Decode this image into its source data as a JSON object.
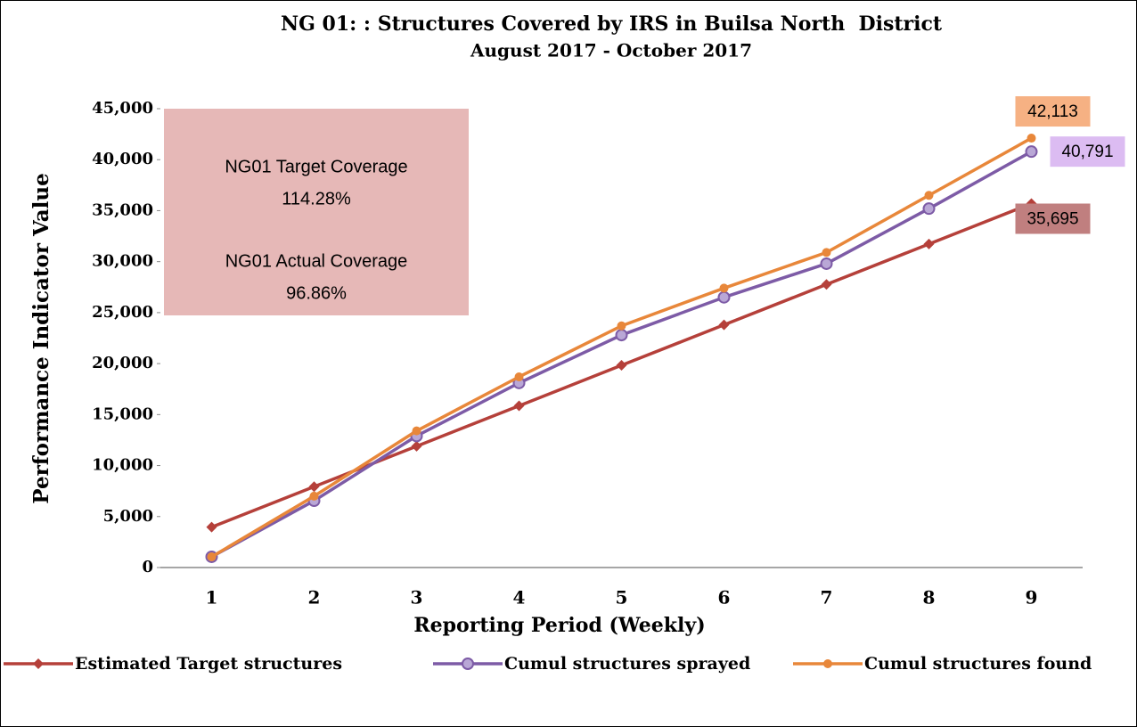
{
  "chart_data": {
    "type": "line",
    "title": "NG 01: : Structures Covered by IRS in Builsa North  District",
    "subtitle": "August 2017 - October 2017",
    "x_label": "Reporting Period (Weekly)",
    "y_label": "Performance Indicator Value",
    "categories": [
      "1",
      "2",
      "3",
      "4",
      "5",
      "6",
      "7",
      "8",
      "9"
    ],
    "series": [
      {
        "name": "Estimated Target structures",
        "color": "#b5403a",
        "marker": "diamond",
        "values": [
          3966,
          7932,
          11898,
          15864,
          19831,
          23797,
          27763,
          31729,
          35695
        ],
        "value_labels": [
          null,
          null,
          null,
          null,
          null,
          null,
          null,
          null,
          "35,695"
        ],
        "label_color": "#c07f7f"
      },
      {
        "name": "Cumul structures sprayed",
        "color": "#7d5ba6",
        "marker": "circle",
        "values": [
          1050,
          6550,
          12900,
          18100,
          22800,
          26500,
          29800,
          35200,
          40791
        ],
        "value_labels": [
          null,
          null,
          null,
          null,
          null,
          null,
          null,
          null,
          "40,791"
        ],
        "label_color": "#dcbcf2"
      },
      {
        "name": "Cumul structures found",
        "color": "#e8873a",
        "marker": "dot",
        "values": [
          1050,
          7000,
          13400,
          18700,
          23700,
          27400,
          30900,
          36500,
          42113
        ],
        "value_labels": [
          null,
          null,
          null,
          null,
          null,
          null,
          null,
          null,
          "42,113"
        ],
        "label_color": "#f6b183"
      }
    ],
    "ylim": [
      0,
      45000
    ],
    "yticks": [
      0,
      {
        "value": 5000,
        "label": "5,000"
      },
      {
        "value": 10000,
        "label": "10,000"
      },
      {
        "value": 15000,
        "label": "15,000"
      },
      {
        "value": 20000,
        "label": "20,000"
      },
      {
        "value": 25000,
        "label": "25,000"
      },
      {
        "value": 30000,
        "label": "30,000"
      },
      {
        "value": 35000,
        "label": "35,000"
      },
      {
        "value": 40000,
        "label": "40,000"
      },
      {
        "value": 45000,
        "label": "45,000"
      }
    ],
    "grid": false,
    "legend": "bottom",
    "annotation": [
      "NG01 Target Coverage",
      "114.28%",
      "NG01 Actual Coverage",
      "96.86%"
    ]
  }
}
